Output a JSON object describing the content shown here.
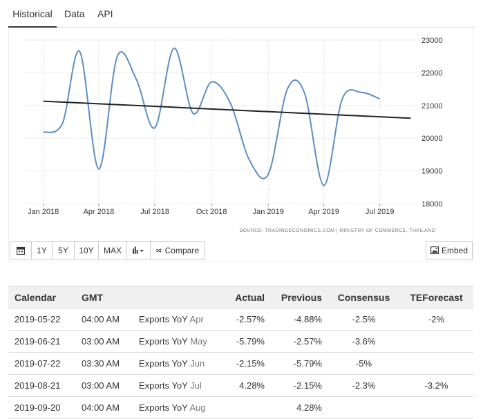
{
  "tabs": [
    {
      "label": "Historical"
    },
    {
      "label": "Data"
    },
    {
      "label": "API"
    }
  ],
  "chart_data": {
    "type": "line",
    "source": "SOURCE: TRADINGECONOMICS.COM | MINISTRY OF COMMERCE, THAILAND",
    "x_ticks": [
      "Jan 2018",
      "Apr 2018",
      "Jul 2018",
      "Oct 2018",
      "Jan 2019",
      "Apr 2019",
      "Jul 2019"
    ],
    "y_ticks": [
      23000,
      22000,
      21000,
      20000,
      19000,
      18000
    ],
    "ylim": [
      18000,
      23000
    ],
    "xlim": [
      "2017-12-01",
      "2019-09-01"
    ],
    "series": [
      {
        "color": "#5b8ec1",
        "x": [
          "2018-01-01",
          "2018-02-01",
          "2018-03-01",
          "2018-04-01",
          "2018-05-01",
          "2018-06-01",
          "2018-07-01",
          "2018-08-01",
          "2018-09-01",
          "2018-10-01",
          "2018-11-01",
          "2018-12-01",
          "2019-01-01",
          "2019-02-01",
          "2019-03-01",
          "2019-04-01",
          "2019-05-01",
          "2019-06-01",
          "2019-07-01"
        ],
        "values": [
          20180,
          20450,
          22650,
          19060,
          22500,
          21800,
          20320,
          22750,
          20760,
          21720,
          21050,
          19350,
          18900,
          21500,
          21370,
          18560,
          21200,
          21400,
          21200
        ]
      }
    ],
    "trend": {
      "color": "#222222",
      "x": [
        "2018-01-01",
        "2019-08-20"
      ],
      "values": [
        21130,
        20610
      ]
    }
  },
  "toolbar": {
    "calendar_icon": "calendar-icon",
    "ranges": [
      "1Y",
      "5Y",
      "10Y",
      "MAX"
    ],
    "chart_type_icon": "bar-chart-icon",
    "compare_label": "Compare",
    "embed_label": "Embed"
  },
  "calendar": {
    "headers": {
      "calendar": "Calendar",
      "gmt": "GMT",
      "actual": "Actual",
      "previous": "Previous",
      "consensus": "Consensus",
      "teforecast": "TEForecast"
    },
    "rows": [
      {
        "date": "2019-05-22",
        "time": "04:00 AM",
        "event": "Exports YoY",
        "period": "Apr",
        "actual": "-2.57%",
        "previous": "-4.88%",
        "consensus": "-2.5%",
        "forecast": "-2%"
      },
      {
        "date": "2019-06-21",
        "time": "03:00 AM",
        "event": "Exports YoY",
        "period": "May",
        "actual": "-5.79%",
        "previous": "-2.57%",
        "consensus": "-3.6%",
        "forecast": ""
      },
      {
        "date": "2019-07-22",
        "time": "03:30 AM",
        "event": "Exports YoY",
        "period": "Jun",
        "actual": "-2.15%",
        "previous": "-5.79%",
        "consensus": "-5%",
        "forecast": ""
      },
      {
        "date": "2019-08-21",
        "time": "03:00 AM",
        "event": "Exports YoY",
        "period": "Jul",
        "actual": "4.28%",
        "previous": "-2.15%",
        "consensus": "-2.3%",
        "forecast": "-3.2%"
      },
      {
        "date": "2019-09-20",
        "time": "04:00 AM",
        "event": "Exports YoY",
        "period": "Aug",
        "actual": "",
        "previous": "4.28%",
        "consensus": "",
        "forecast": ""
      }
    ]
  }
}
